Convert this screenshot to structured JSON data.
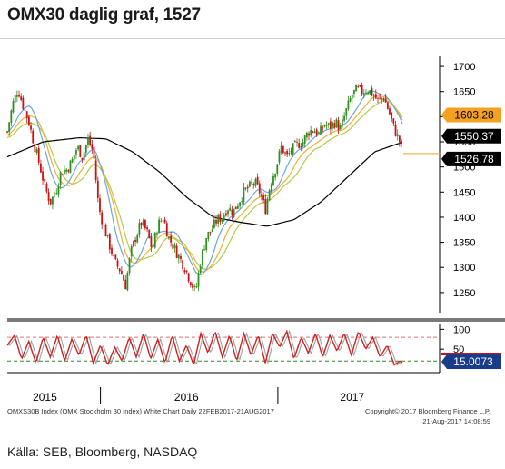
{
  "title": "OMX30 daglig graf, 1527",
  "footer_source": "Källa: SEB, Bloomberg, NASDAQ",
  "chart_caption_left": "OMXS30B Index (OMX Stockholm 30 Index) White Chart  Daily 22FEB2017-21AUG2017",
  "chart_caption_right_1": "Copyright© 2017 Bloomberg Finance L.P.",
  "chart_caption_right_2": "21-Aug-2017  14:08:59",
  "colors": {
    "candle_up": "#2f8f1f",
    "candle_down": "#c81414",
    "ma_blue": "#6aa8e0",
    "ma_orange": "#f0b030",
    "ma_green": "#b8c84a",
    "ma_black": "#000000",
    "stoch_line": "#d02020",
    "stoch_gray": "#9a9a9a",
    "badge_orange": "#f4a020",
    "badge_black": "#000000",
    "badge_blue": "#1a3a8a",
    "band_upper": "#e07070",
    "band_lower": "#2a8a2a"
  },
  "chart_data": [
    {
      "type": "line",
      "title": "",
      "x_labels": [
        "2015",
        "2016",
        "2017"
      ],
      "y_ticks": [
        1250,
        1300,
        1350,
        1400,
        1450,
        1500,
        1550,
        1600,
        1650,
        1700
      ],
      "ylim": [
        1210,
        1720
      ],
      "price_path": [
        {
          "t": 0,
          "v": 1570
        },
        {
          "t": 6,
          "v": 1625
        },
        {
          "t": 12,
          "v": 1655
        },
        {
          "t": 18,
          "v": 1620
        },
        {
          "t": 24,
          "v": 1590
        },
        {
          "t": 30,
          "v": 1545
        },
        {
          "t": 36,
          "v": 1505
        },
        {
          "t": 42,
          "v": 1460
        },
        {
          "t": 48,
          "v": 1430
        },
        {
          "t": 54,
          "v": 1450
        },
        {
          "t": 60,
          "v": 1490
        },
        {
          "t": 66,
          "v": 1495
        },
        {
          "t": 72,
          "v": 1510
        },
        {
          "t": 78,
          "v": 1540
        },
        {
          "t": 84,
          "v": 1520
        },
        {
          "t": 90,
          "v": 1555
        },
        {
          "t": 96,
          "v": 1530
        },
        {
          "t": 102,
          "v": 1420
        },
        {
          "t": 108,
          "v": 1380
        },
        {
          "t": 114,
          "v": 1345
        },
        {
          "t": 120,
          "v": 1310
        },
        {
          "t": 126,
          "v": 1295
        },
        {
          "t": 132,
          "v": 1265
        },
        {
          "t": 138,
          "v": 1330
        },
        {
          "t": 144,
          "v": 1365
        },
        {
          "t": 150,
          "v": 1390
        },
        {
          "t": 156,
          "v": 1370
        },
        {
          "t": 162,
          "v": 1335
        },
        {
          "t": 168,
          "v": 1385
        },
        {
          "t": 174,
          "v": 1400
        },
        {
          "t": 180,
          "v": 1360
        },
        {
          "t": 186,
          "v": 1340
        },
        {
          "t": 192,
          "v": 1320
        },
        {
          "t": 198,
          "v": 1300
        },
        {
          "t": 204,
          "v": 1275
        },
        {
          "t": 210,
          "v": 1250
        },
        {
          "t": 216,
          "v": 1315
        },
        {
          "t": 222,
          "v": 1360
        },
        {
          "t": 228,
          "v": 1375
        },
        {
          "t": 234,
          "v": 1395
        },
        {
          "t": 240,
          "v": 1400
        },
        {
          "t": 246,
          "v": 1420
        },
        {
          "t": 252,
          "v": 1410
        },
        {
          "t": 258,
          "v": 1430
        },
        {
          "t": 264,
          "v": 1450
        },
        {
          "t": 270,
          "v": 1460
        },
        {
          "t": 276,
          "v": 1470
        },
        {
          "t": 282,
          "v": 1450
        },
        {
          "t": 288,
          "v": 1415
        },
        {
          "t": 294,
          "v": 1470
        },
        {
          "t": 300,
          "v": 1500
        },
        {
          "t": 306,
          "v": 1540
        },
        {
          "t": 312,
          "v": 1520
        },
        {
          "t": 318,
          "v": 1535
        },
        {
          "t": 324,
          "v": 1545
        },
        {
          "t": 330,
          "v": 1550
        },
        {
          "t": 336,
          "v": 1570
        },
        {
          "t": 342,
          "v": 1575
        },
        {
          "t": 348,
          "v": 1565
        },
        {
          "t": 354,
          "v": 1585
        },
        {
          "t": 360,
          "v": 1580
        },
        {
          "t": 366,
          "v": 1590
        },
        {
          "t": 372,
          "v": 1575
        },
        {
          "t": 378,
          "v": 1610
        },
        {
          "t": 384,
          "v": 1640
        },
        {
          "t": 390,
          "v": 1655
        },
        {
          "t": 396,
          "v": 1650
        },
        {
          "t": 402,
          "v": 1655
        },
        {
          "t": 408,
          "v": 1645
        },
        {
          "t": 414,
          "v": 1630
        },
        {
          "t": 420,
          "v": 1640
        },
        {
          "t": 426,
          "v": 1610
        },
        {
          "t": 432,
          "v": 1575
        },
        {
          "t": 438,
          "v": 1550
        },
        {
          "t": 442,
          "v": 1527
        }
      ],
      "ma_black_path": [
        {
          "t": 0,
          "v": 1520
        },
        {
          "t": 40,
          "v": 1550
        },
        {
          "t": 80,
          "v": 1558
        },
        {
          "t": 110,
          "v": 1556
        },
        {
          "t": 140,
          "v": 1530
        },
        {
          "t": 170,
          "v": 1490
        },
        {
          "t": 200,
          "v": 1440
        },
        {
          "t": 230,
          "v": 1400
        },
        {
          "t": 260,
          "v": 1390
        },
        {
          "t": 290,
          "v": 1382
        },
        {
          "t": 320,
          "v": 1395
        },
        {
          "t": 350,
          "v": 1430
        },
        {
          "t": 380,
          "v": 1480
        },
        {
          "t": 410,
          "v": 1530
        },
        {
          "t": 442,
          "v": 1550
        }
      ],
      "badges": [
        {
          "label": "1603.28",
          "value": 1603.28,
          "kind": "orange"
        },
        {
          "label": "1550.37",
          "value": 1550.37,
          "kind": "black"
        },
        {
          "label": "1526.78",
          "value": 1526.78,
          "kind": "black"
        }
      ],
      "last_price": 1526.78
    },
    {
      "type": "line",
      "title": "",
      "y_ticks": [
        50,
        100
      ],
      "ylim": [
        0,
        110
      ],
      "upper_band": 80,
      "lower_band": 20,
      "stoch_path": [
        {
          "t": 0,
          "v": 60
        },
        {
          "t": 8,
          "v": 85
        },
        {
          "t": 16,
          "v": 25
        },
        {
          "t": 24,
          "v": 70
        },
        {
          "t": 32,
          "v": 15
        },
        {
          "t": 40,
          "v": 80
        },
        {
          "t": 48,
          "v": 30
        },
        {
          "t": 56,
          "v": 85
        },
        {
          "t": 64,
          "v": 20
        },
        {
          "t": 72,
          "v": 75
        },
        {
          "t": 80,
          "v": 35
        },
        {
          "t": 88,
          "v": 85
        },
        {
          "t": 96,
          "v": 15
        },
        {
          "t": 104,
          "v": 60
        },
        {
          "t": 112,
          "v": 10
        },
        {
          "t": 120,
          "v": 55
        },
        {
          "t": 128,
          "v": 20
        },
        {
          "t": 136,
          "v": 80
        },
        {
          "t": 144,
          "v": 30
        },
        {
          "t": 152,
          "v": 90
        },
        {
          "t": 160,
          "v": 25
        },
        {
          "t": 168,
          "v": 75
        },
        {
          "t": 176,
          "v": 15
        },
        {
          "t": 184,
          "v": 85
        },
        {
          "t": 192,
          "v": 20
        },
        {
          "t": 200,
          "v": 60
        },
        {
          "t": 208,
          "v": 10
        },
        {
          "t": 216,
          "v": 90
        },
        {
          "t": 224,
          "v": 40
        },
        {
          "t": 232,
          "v": 95
        },
        {
          "t": 240,
          "v": 30
        },
        {
          "t": 248,
          "v": 85
        },
        {
          "t": 256,
          "v": 20
        },
        {
          "t": 264,
          "v": 90
        },
        {
          "t": 272,
          "v": 35
        },
        {
          "t": 280,
          "v": 85
        },
        {
          "t": 288,
          "v": 15
        },
        {
          "t": 296,
          "v": 90
        },
        {
          "t": 304,
          "v": 55
        },
        {
          "t": 312,
          "v": 95
        },
        {
          "t": 320,
          "v": 25
        },
        {
          "t": 328,
          "v": 80
        },
        {
          "t": 336,
          "v": 40
        },
        {
          "t": 344,
          "v": 90
        },
        {
          "t": 352,
          "v": 30
        },
        {
          "t": 360,
          "v": 85
        },
        {
          "t": 368,
          "v": 45
        },
        {
          "t": 376,
          "v": 90
        },
        {
          "t": 384,
          "v": 35
        },
        {
          "t": 392,
          "v": 95
        },
        {
          "t": 400,
          "v": 50
        },
        {
          "t": 408,
          "v": 80
        },
        {
          "t": 416,
          "v": 30
        },
        {
          "t": 424,
          "v": 60
        },
        {
          "t": 432,
          "v": 10
        },
        {
          "t": 438,
          "v": 20
        },
        {
          "t": 442,
          "v": 15
        }
      ],
      "badges": [
        {
          "label": "15.0073",
          "value": 15.0073,
          "kind": "blue"
        }
      ]
    }
  ]
}
